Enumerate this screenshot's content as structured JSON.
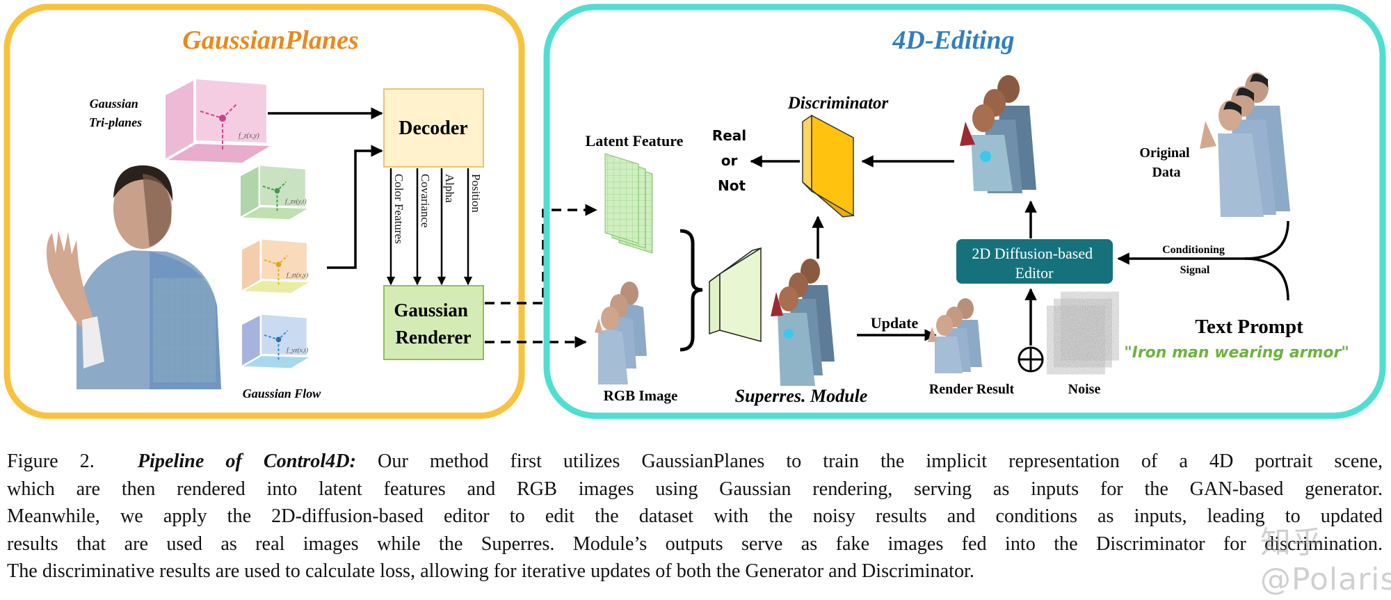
{
  "left_panel": {
    "title": "GaussianPlanes",
    "border_color": "#F9C23C",
    "title_color": "#E98A1D",
    "triplanes_label": [
      "Gaussian",
      "Tri-planes"
    ],
    "flow_label": "Gaussian Flow",
    "plane_labels": {
      "pink": "f_z(x,y)",
      "green": "f_zx(y,t)",
      "orange": "f_zt(x,y)",
      "blue": "f_yz(x,t)"
    },
    "decoder_label": "Decoder",
    "renderer_label": [
      "Gaussian",
      "Renderer"
    ],
    "decoder_outputs": [
      "Color Features",
      "Covariance",
      "Alpha",
      "Position"
    ]
  },
  "right_panel": {
    "title": "4D-Editing",
    "border_color": "#4EDFD2",
    "title_color": "#2F7FBF",
    "latent_feature_label": "Latent Feature",
    "rgb_image_label": "RGB Image",
    "superres_label": "Superres. Module",
    "discriminator_label": "Discriminator",
    "real_or_not": [
      "Real",
      "or",
      "Not"
    ],
    "update_label": "Update",
    "render_result_label": "Render Result",
    "noise_label": "Noise",
    "editor_label": [
      "2D Diffusion-based",
      "Editor"
    ],
    "editor_color": "#15727C",
    "conditioning_label": [
      "Conditioning",
      "Signal"
    ],
    "original_data_label": [
      "Original",
      "Data"
    ],
    "text_prompt_label": "Text Prompt",
    "prompt_text": "\"Iron man wearing armor\"",
    "prompt_color": "#6DB33F"
  },
  "caption": {
    "figure_label": "Figure 2.",
    "title": "Pipeline of Control4D:",
    "lines": [
      "Our method first utilizes GaussianPlanes to train the implicit representation of a 4D portrait scene,",
      "which are then rendered into latent features and RGB images using Gaussian rendering, serving as inputs for the GAN-based generator.",
      "Meanwhile, we apply the 2D-diffusion-based editor to edit the dataset with the noisy results and conditions as inputs, leading to updated",
      "results that are used as real images while the Superres. Module’s outputs serve as fake images fed into the Discriminator for discrimination.",
      "The discriminative results are used to calculate loss, allowing for iterative updates of both the Generator and Discriminator."
    ]
  },
  "watermark": "知乎 @PolarisT"
}
